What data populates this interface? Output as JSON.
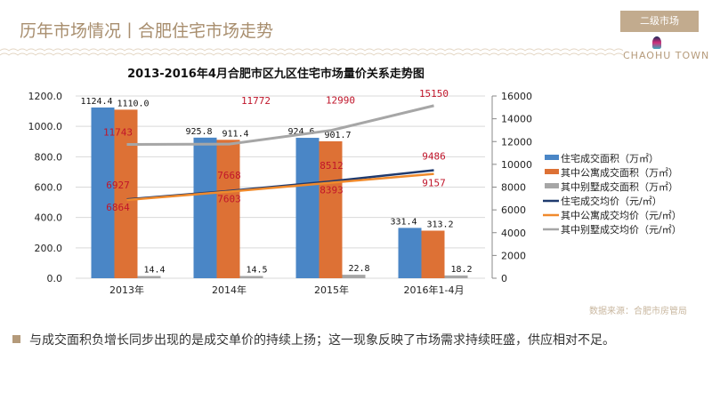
{
  "header": {
    "title": "历年市场情况丨合肥住宅市场走势",
    "badge": "二级市场",
    "logo": "CHAOHU TOWN"
  },
  "colors": {
    "blue": "#4a86c6",
    "orange": "#dd7135",
    "gray": "#a6a6a6",
    "navy": "#1f3a6e",
    "line_orange": "#f08a2c",
    "label_red": "#c0152a",
    "accent": "#b49a7a"
  },
  "chart_data": {
    "type": "bar+line",
    "title": "2013-2016年4月合肥市区九区住宅市场量价关系走势图",
    "categories": [
      "2013年",
      "2014年",
      "2015年",
      "2016年1-4月"
    ],
    "y_left": {
      "range": [
        0,
        1200
      ],
      "ticks": [
        "0.0",
        "200.0",
        "400.0",
        "600.0",
        "800.0",
        "1000.0",
        "1200.0"
      ]
    },
    "y_right": {
      "range": [
        0,
        16000
      ],
      "ticks": [
        "0",
        "2000",
        "4000",
        "6000",
        "8000",
        "10000",
        "12000",
        "14000",
        "16000"
      ]
    },
    "grid": true,
    "legend_position": "right",
    "bar_series": [
      {
        "name": "住宅成交面积（万㎡）",
        "values": [
          1124.4,
          925.8,
          924.6,
          331.4
        ],
        "labels": [
          "1124.4",
          "925.8",
          "924.6",
          "331.4"
        ]
      },
      {
        "name": "其中公寓成交面积（万㎡）",
        "values": [
          1110.0,
          911.4,
          901.7,
          313.2
        ],
        "labels": [
          "1110.0",
          "911.4",
          "901.7",
          "313.2"
        ]
      },
      {
        "name": "其中别墅成交面积（万㎡）",
        "values": [
          14.4,
          14.5,
          22.8,
          18.2
        ],
        "labels": [
          "14.4",
          "14.5",
          "22.8",
          "18.2"
        ]
      }
    ],
    "line_series": [
      {
        "name": "住宅成交均价（元/㎡）",
        "values": [
          6927,
          7668,
          8512,
          9486
        ],
        "labels": [
          "6927",
          "7668",
          "8512",
          "9486"
        ]
      },
      {
        "name": "其中公寓成交均价（元/㎡）",
        "values": [
          6864,
          7603,
          8393,
          9157
        ],
        "labels": [
          "6864",
          "7603",
          "8393",
          "9157"
        ]
      },
      {
        "name": "其中别墅成交均价（元/㎡）",
        "values": [
          11743,
          11772,
          12990,
          15150
        ],
        "labels": [
          "11743",
          "11772",
          "12990",
          "15150"
        ]
      }
    ]
  },
  "source": "数据来源：合肥市房管局",
  "note": "与成交面积负增长同步出现的是成交单价的持续上扬；这一现象反映了市场需求持续旺盛，供应相对不足。"
}
